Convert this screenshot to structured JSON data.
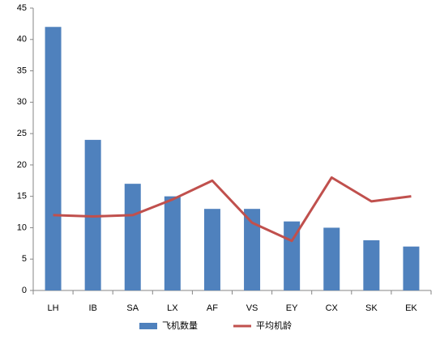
{
  "chart_data": {
    "type": "combo",
    "categories": [
      "LH",
      "IB",
      "SA",
      "LX",
      "AF",
      "VS",
      "EY",
      "CX",
      "SK",
      "EK"
    ],
    "series": [
      {
        "name": "飞机数量",
        "type": "bar",
        "color": "#4f81bd",
        "values": [
          42,
          24,
          17,
          15,
          13,
          13,
          11,
          10,
          8,
          7
        ]
      },
      {
        "name": "平均机龄",
        "type": "line",
        "color": "#c0504d",
        "values": [
          12,
          11.8,
          12,
          14.5,
          17.5,
          10.8,
          7.9,
          18,
          14.2,
          15
        ]
      }
    ],
    "ylim": [
      0,
      45
    ],
    "yticks": [
      0,
      5,
      10,
      15,
      20,
      25,
      30,
      35,
      40,
      45
    ],
    "grid": false,
    "legend": "bottom"
  }
}
